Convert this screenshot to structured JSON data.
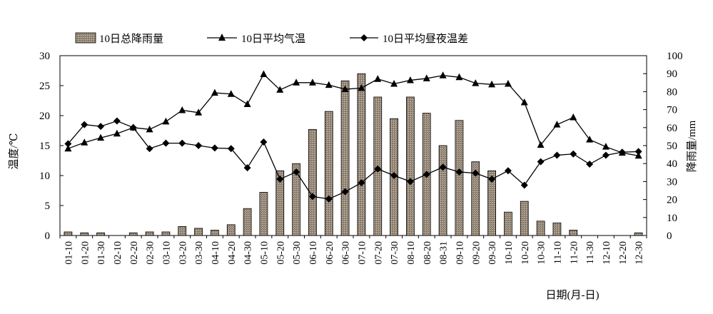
{
  "chart_data": {
    "type": "bar+line",
    "legend": [
      {
        "name": "10日总降雨量",
        "marker": "bar"
      },
      {
        "name": "10日平均气温",
        "marker": "triangle"
      },
      {
        "name": "10日平均昼夜温差",
        "marker": "diamond"
      }
    ],
    "categories": [
      "01-10",
      "01-20",
      "01-30",
      "02-10",
      "02-20",
      "02-30",
      "03-10",
      "03-20",
      "03-30",
      "04-10",
      "04-20",
      "04-30",
      "05-10",
      "05-20",
      "05-30",
      "06-10",
      "06-20",
      "06-30",
      "07-10",
      "07-20",
      "07-30",
      "08-10",
      "08-20",
      "08-31",
      "09-10",
      "09-20",
      "09-30",
      "10-10",
      "10-20",
      "10-30",
      "11-10",
      "11-20",
      "11-30",
      "12-10",
      "12-20",
      "12-30"
    ],
    "rainfall": [
      2,
      1.5,
      1.5,
      0,
      1.5,
      2,
      2,
      5,
      4,
      3,
      6,
      15,
      24,
      36,
      40,
      59,
      69,
      86,
      90,
      77,
      65,
      77,
      68,
      50,
      64,
      41,
      36,
      13,
      19,
      8,
      7,
      3,
      0,
      0,
      0,
      1.5
    ],
    "avg_temp": [
      14.5,
      15.5,
      16.3,
      17.0,
      18.0,
      17.7,
      19.0,
      20.9,
      20.5,
      23.8,
      23.6,
      21.9,
      26.9,
      24.3,
      25.5,
      25.5,
      25.1,
      24.4,
      24.6,
      26.1,
      25.3,
      25.9,
      26.2,
      26.7,
      26.4,
      25.4,
      25.2,
      25.3,
      22.2,
      15.1,
      18.5,
      19.7,
      16.0,
      14.8,
      13.8,
      13.3
    ],
    "temp_diff": [
      15.3,
      18.5,
      18.2,
      19.1,
      18.0,
      14.5,
      15.4,
      15.4,
      15.0,
      14.6,
      14.5,
      11.3,
      15.6,
      9.4,
      10.6,
      6.5,
      6.1,
      7.3,
      8.8,
      11.1,
      10.0,
      9.0,
      10.2,
      11.4,
      10.6,
      10.4,
      9.4,
      10.8,
      8.4,
      12.3,
      13.4,
      13.6,
      11.9,
      13.4,
      13.9,
      14.0
    ],
    "y_left": {
      "label": "温度/℃",
      "min": 0,
      "max": 30,
      "ticks": [
        0,
        5,
        10,
        15,
        20,
        25,
        30
      ]
    },
    "y_right": {
      "label": "降雨量/mm",
      "min": 0,
      "max": 100,
      "ticks": [
        0,
        10,
        20,
        30,
        40,
        50,
        60,
        70,
        80,
        90,
        100
      ]
    },
    "xlabel": "日期(月-日)",
    "grid": false,
    "legend_position": "top"
  }
}
